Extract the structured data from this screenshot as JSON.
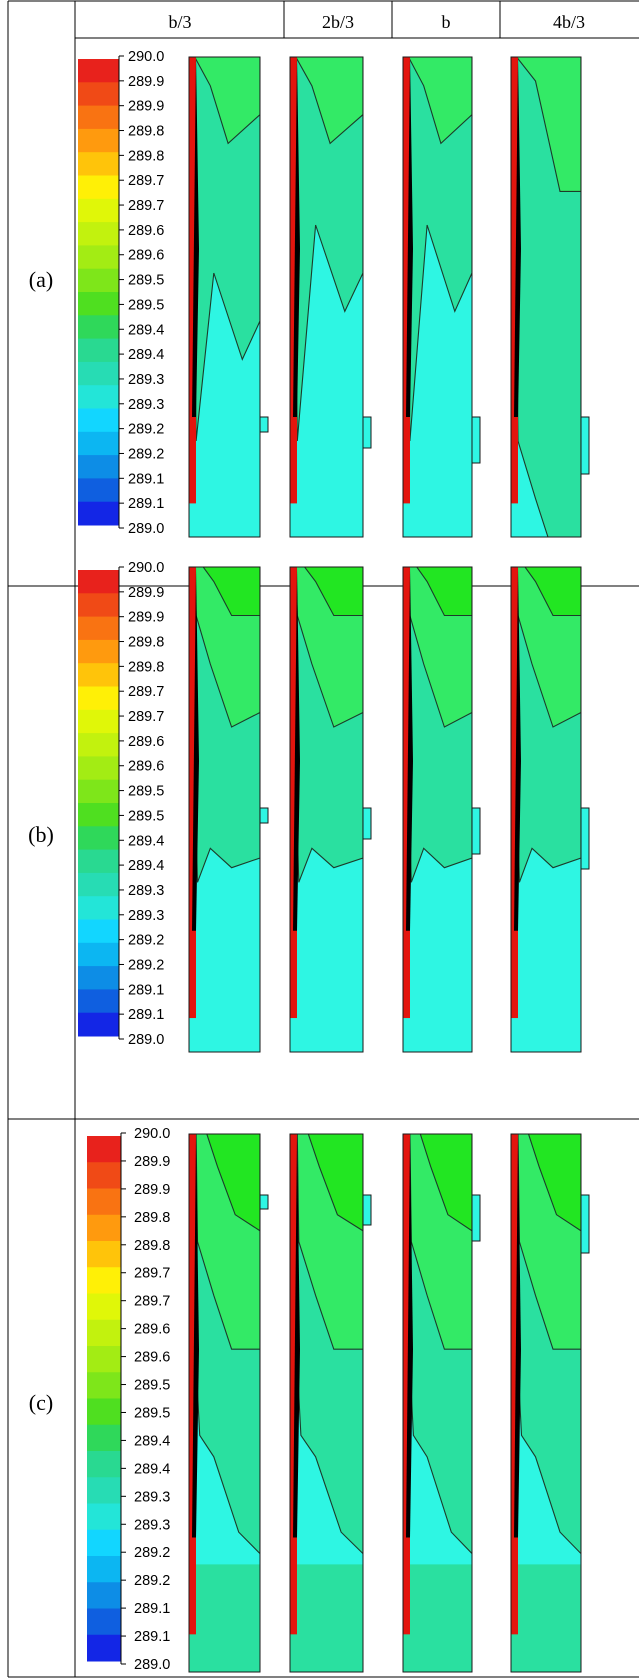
{
  "figure": {
    "column_headers": [
      "b/3",
      "2b/3",
      "b",
      "4b/3"
    ],
    "rows": [
      {
        "label": "(a)",
        "legend_ticks": [
          "290.0",
          "289.9",
          "289.9",
          "289.8",
          "289.8",
          "289.7",
          "289.7",
          "289.6",
          "289.6",
          "289.5",
          "289.5",
          "289.4",
          "289.4",
          "289.3",
          "289.3",
          "289.2",
          "289.2",
          "289.1",
          "289.1",
          "289.0"
        ]
      },
      {
        "label": "(b)",
        "legend_ticks": [
          "290.0",
          "289.9",
          "289.9",
          "289.8",
          "289.8",
          "289.7",
          "289.7",
          "289.6",
          "289.6",
          "289.5",
          "289.5",
          "289.4",
          "289.4",
          "289.3",
          "289.3",
          "289.2",
          "289.2",
          "289.1",
          "289.1",
          "289.0"
        ]
      },
      {
        "label": "(c)",
        "legend_ticks": [
          "290.0",
          "289.9",
          "289.9",
          "289.8",
          "289.8",
          "289.7",
          "289.7",
          "289.6",
          "289.6",
          "289.5",
          "289.5",
          "289.4",
          "289.4",
          "289.3",
          "289.3",
          "289.2",
          "289.2",
          "289.1",
          "289.1",
          "289.0"
        ]
      }
    ],
    "legend_colors": [
      "#e8221c",
      "#f04a16",
      "#f97312",
      "#ff9a0e",
      "#ffc40a",
      "#fff006",
      "#e0f708",
      "#c2f20e",
      "#a3ec14",
      "#7ee61a",
      "#4fdf20",
      "#2fd85a",
      "#29d991",
      "#27dcb4",
      "#23e5d8",
      "#12d6ff",
      "#0cb6f2",
      "#0d8de6",
      "#0f5fe0",
      "#1326e6"
    ],
    "colors": {
      "wall_red": "#e3150e",
      "wall_black": "#000000",
      "cold_cyan": "#2ef6e3",
      "mid_green": "#2ae0a0",
      "warm_green": "#33ea66",
      "hot_green": "#22e622",
      "yellow_green": "#6ee83d"
    }
  }
}
